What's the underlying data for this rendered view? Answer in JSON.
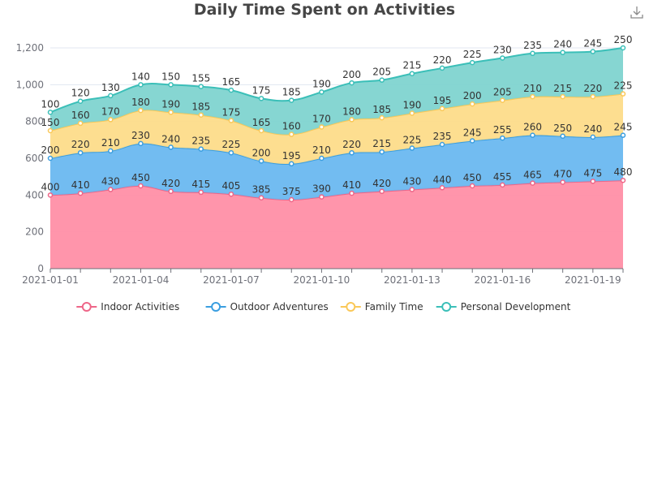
{
  "chart_data": {
    "type": "area",
    "stacked": true,
    "title": "Daily Time Spent on Activities",
    "x": [
      "2021-01-01",
      "2021-01-02",
      "2021-01-03",
      "2021-01-04",
      "2021-01-05",
      "2021-01-06",
      "2021-01-07",
      "2021-01-08",
      "2021-01-09",
      "2021-01-10",
      "2021-01-11",
      "2021-01-12",
      "2021-01-13",
      "2021-01-14",
      "2021-01-15",
      "2021-01-16",
      "2021-01-17",
      "2021-01-18",
      "2021-01-19",
      "2021-01-20"
    ],
    "x_tick_labels": [
      "2021-01-01",
      "2021-01-04",
      "2021-01-07",
      "2021-01-10",
      "2021-01-13",
      "2021-01-16",
      "2021-01-19"
    ],
    "y_tick_labels": [
      "0",
      "200",
      "400",
      "600",
      "800",
      "1,000",
      "1,200"
    ],
    "ylim": [
      0,
      1200
    ],
    "grid": true,
    "legend_position": "bottom",
    "series": [
      {
        "name": "Indoor Activities",
        "color": "#ee6688",
        "fill": "#ff8fa6",
        "values": [
          400,
          410,
          430,
          450,
          420,
          415,
          405,
          385,
          375,
          390,
          410,
          420,
          430,
          440,
          450,
          455,
          465,
          470,
          475,
          480
        ]
      },
      {
        "name": "Outdoor Adventures",
        "color": "#3a9ee0",
        "fill": "#6ab8f0",
        "values": [
          200,
          220,
          210,
          230,
          240,
          235,
          225,
          200,
          195,
          210,
          220,
          215,
          225,
          235,
          245,
          255,
          260,
          250,
          240,
          245
        ]
      },
      {
        "name": "Family Time",
        "color": "#fac858",
        "fill": "#fddc8a",
        "values": [
          150,
          160,
          170,
          180,
          190,
          185,
          175,
          165,
          160,
          170,
          180,
          185,
          190,
          195,
          200,
          205,
          210,
          215,
          220,
          225
        ]
      },
      {
        "name": "Personal Development",
        "color": "#3bbfb8",
        "fill": "#7fd4d0",
        "values": [
          100,
          120,
          130,
          140,
          150,
          155,
          165,
          175,
          185,
          190,
          200,
          205,
          215,
          220,
          225,
          230,
          235,
          240,
          245,
          250
        ]
      }
    ]
  },
  "toolbar": {
    "download_icon": "download-icon"
  }
}
